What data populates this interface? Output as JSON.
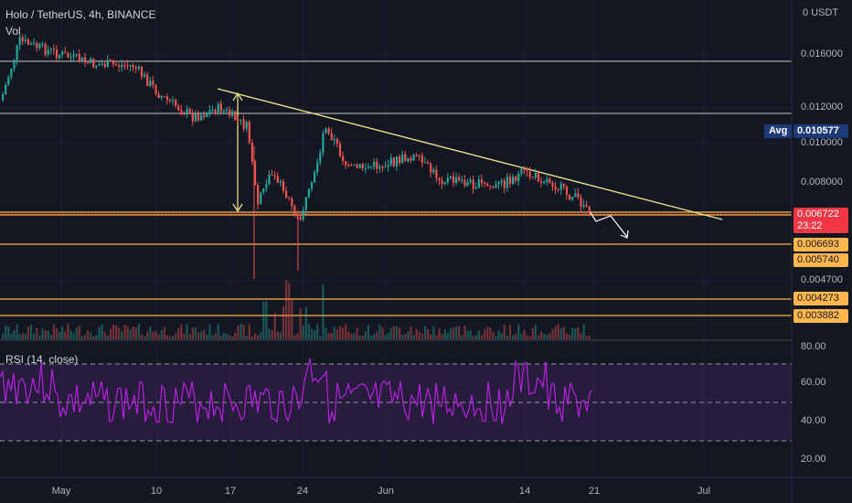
{
  "header": {
    "symbol_title": "Holo / TetherUS, 4h, BINANCE",
    "volume_label": "Vol",
    "currency": "USDT"
  },
  "price_axis": {
    "ticks": [
      "0.016000",
      "0.012000",
      "0.010000",
      "0.008000",
      "0.004700"
    ],
    "avg_label": "Avg",
    "avg_value": "0.010577",
    "last_price": "0.006722",
    "countdown": "23:22",
    "levels": [
      "0.006693",
      "0.005740",
      "0.004273",
      "0.003882"
    ]
  },
  "rsi": {
    "label": "RSI (14, close)",
    "ticks": [
      "80.00",
      "60.00",
      "40.00",
      "20.00"
    ]
  },
  "time_axis": {
    "ticks": [
      "May",
      "10",
      "17",
      "24",
      "Jun",
      "14",
      "21",
      "Jul"
    ]
  },
  "colors": {
    "background": "#131722",
    "up": "#26a69a",
    "down": "#ef5350",
    "trendline": "#f7e98b",
    "level": "#ffb74d",
    "rsi_line": "#b721e0",
    "rsi_band": "#5e2a84",
    "last_price": "#f23645",
    "avg": "#1e3a78"
  }
}
